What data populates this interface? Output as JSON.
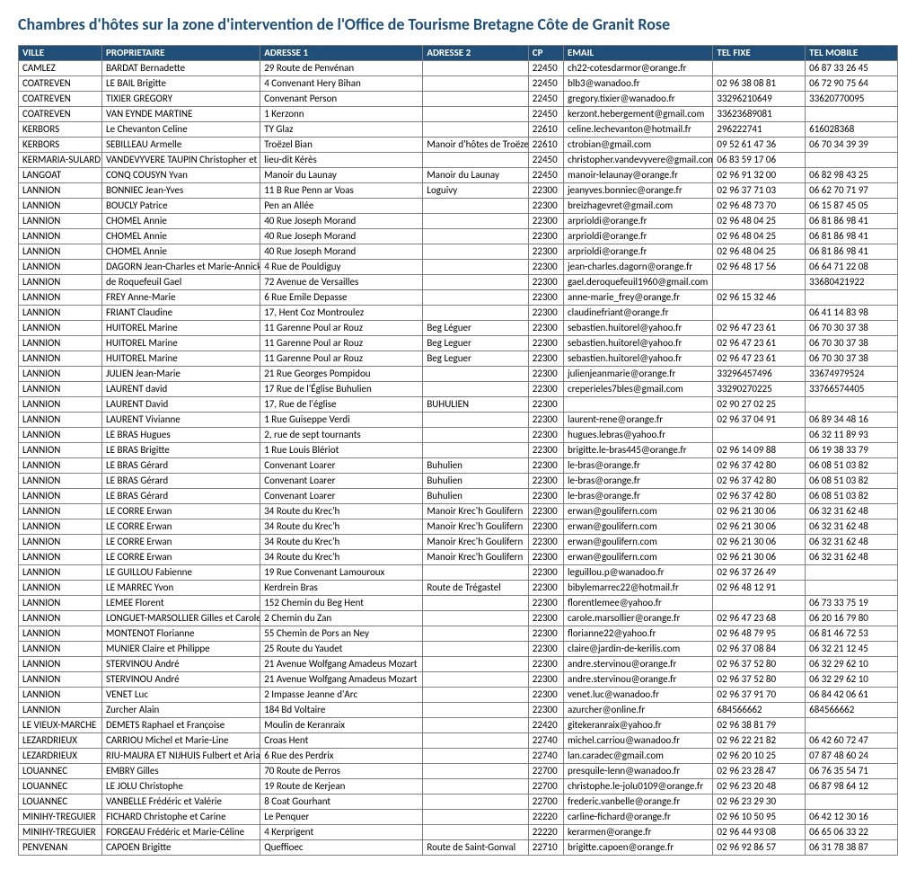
{
  "title": "Chambres d'hôtes sur la zone d'intervention de l'Office de Tourisme Bretagne Côte de Granit Rose",
  "columns": [
    "VILLE",
    "PROPRIETAIRE",
    "ADRESSE 1",
    "ADRESSE 2",
    "CP",
    "EMAIL",
    "TEL FIXE",
    "TEL MOBILE"
  ],
  "rows": [
    [
      "CAMLEZ",
      "BARDAT Bernadette",
      "29 Route de Penvénan",
      "",
      "22450",
      "ch22-cotesdarmor@orange.fr",
      "",
      "06 87 33 26 45"
    ],
    [
      "COATREVEN",
      "LE BAIL Brigitte",
      "4 Convenant Hery Bihan",
      "",
      "22450",
      "blb3@wanadoo.fr",
      "02 96 38 08 81",
      "06 72 90 75 64"
    ],
    [
      "COATREVEN",
      "TIXIER GREGORY",
      "Convenant Person",
      "",
      "22450",
      "gregory.tixier@wanadoo.fr",
      "33296210649",
      "33620770095"
    ],
    [
      "COATREVEN",
      "VAN EYNDE MARTINE",
      "1 Kerzonn",
      "",
      "22450",
      "kerzont.hebergement@gmail.com",
      "33623689081",
      ""
    ],
    [
      "KERBORS",
      "Le Chevanton Celine",
      "TY Glaz",
      "",
      "22610",
      "celine.lechevanton@hotmail.fr",
      "296222741",
      "616028368"
    ],
    [
      "KERBORS",
      "SEBILLEAU Armelle",
      "Troëzel Bian",
      "Manoir d'hôtes de Troëzel Bian",
      "22610",
      "ctrobian@gmail.com",
      "09 52 61 47 36",
      "06 70 34 39 39"
    ],
    [
      "KERMARIA-SULARD",
      "VANDEVYVERE TAUPIN  Christopher et Christelle",
      "lieu-dit Kérès",
      "",
      "22450",
      "christopher.vandevyvere@gmail.com",
      "06 83 59 17 06",
      ""
    ],
    [
      "LANGOAT",
      "CONQ COUSYN Yvan",
      "Manoir du Launay",
      "Manoir du Launay",
      "22450",
      "manoir-lelaunay@orange.fr",
      "02 96 91 32 00",
      "06 82 98 43 25"
    ],
    [
      "LANNION",
      "BONNIEC Jean-Yves",
      "11 B Rue Penn ar Voas",
      "Loguivy",
      "22300",
      "jeanyves.bonniec@orange.fr",
      "02 96 37 71 03",
      "06 62 70 71 97"
    ],
    [
      "LANNION",
      "BOUCLY Patrice",
      "Pen an Allée",
      "",
      "22300",
      "breizhagevret@gmail.com",
      "02 96 48 73 70",
      "06 15 87 45 05"
    ],
    [
      "LANNION",
      "CHOMEL Annie",
      "40 Rue Joseph Morand",
      "",
      "22300",
      "arprioldi@orange.fr",
      "02 96 48 04 25",
      "06 81 86 98 41"
    ],
    [
      "LANNION",
      "CHOMEL Annie",
      "40 Rue Joseph Morand",
      "",
      "22300",
      "arprioldi@orange.fr",
      "02 96 48 04 25",
      "06 81 86 98 41"
    ],
    [
      "LANNION",
      "CHOMEL Annie",
      "40 Rue Joseph Morand",
      "",
      "22300",
      "arprioldi@orange.fr",
      "02 96 48 04 25",
      "06 81 86 98 41"
    ],
    [
      "LANNION",
      "DAGORN Jean-Charles et Marie-Annick",
      "4 Rue de Pouldiguy",
      "",
      "22300",
      "jean-charles.dagorn@orange.fr",
      "02 96 48 17 56",
      "06 64 71 22 08"
    ],
    [
      "LANNION",
      "de Roquefeuil Gael",
      "72 Avenue de Versailles",
      "",
      "22300",
      "gael.deroquefeuil1960@gmail.com",
      "",
      "33680421922"
    ],
    [
      "LANNION",
      "FREY Anne-Marie",
      "6 Rue Emile Depasse",
      "",
      "22300",
      "anne-marie_frey@orange.fr",
      "02 96 15 32 46",
      ""
    ],
    [
      "LANNION",
      "FRIANT Claudine",
      "17, Hent Coz Montroulez",
      "",
      "22300",
      "claudinefriant@orange.fr",
      "",
      "06 41 14 83 98"
    ],
    [
      "LANNION",
      "HUITOREL Marine",
      "11 Garenne Poul ar Rouz",
      "Beg Léguer",
      "22300",
      "sebastien.huitorel@yahoo.fr",
      "02 96 47 23 61",
      "06 70 30 37 38"
    ],
    [
      "LANNION",
      "HUITOREL Marine",
      "11 Garenne Poul ar Rouz",
      "Beg Leguer",
      "22300",
      "sebastien.huitorel@yahoo.fr",
      "02 96 47 23 61",
      "06 70 30 37 38"
    ],
    [
      "LANNION",
      "HUITOREL Marine",
      "11 Garenne Poul ar Rouz",
      "Beg Leguer",
      "22300",
      "sebastien.huitorel@yahoo.fr",
      "02 96 47 23 61",
      "06 70 30 37 38"
    ],
    [
      "LANNION",
      "JULIEN Jean-Marie",
      "21 Rue Georges Pompidou",
      "",
      "22300",
      "julienjeanmarie@orange.fr",
      "33296457496",
      "33674979524"
    ],
    [
      "LANNION",
      "LAURENT david",
      "17 Rue de l'Église Buhulien",
      "",
      "22300",
      "creperieles7bles@gmail.com",
      "33290270225",
      "33766574405"
    ],
    [
      "LANNION",
      "LAURENT David",
      "17, Rue de l'église",
      "BUHULIEN",
      "22300",
      "",
      "02 90 27 02 25",
      ""
    ],
    [
      "LANNION",
      "LAURENT Vivianne",
      "1 Rue Guiseppe Verdi",
      "",
      "22300",
      "laurent-rene@orange.fr",
      "02 96 37 04 91",
      "06 89 34 48 16"
    ],
    [
      "LANNION",
      "LE BRAS  Hugues",
      "2, rue de sept tournants",
      "",
      "22300",
      "hugues.lebras@yahoo.fr",
      "",
      "06 32 11 89 93"
    ],
    [
      "LANNION",
      "LE BRAS Brigitte",
      "1 Rue Louis Blériot",
      "",
      "22300",
      "brigitte.le-bras445@orange.fr",
      "02 96 14 09 88",
      "06 19 38 33 79"
    ],
    [
      "LANNION",
      "LE BRAS Gérard",
      "Convenant Loarer",
      "Buhulien",
      "22300",
      "le-bras@orange.fr",
      "02 96 37 42 80",
      "06 08 51 03 82"
    ],
    [
      "LANNION",
      "LE BRAS Gérard",
      "Convenant Loarer",
      "Buhulien",
      "22300",
      "le-bras@orange.fr",
      "02 96 37 42 80",
      "06 08 51 03 82"
    ],
    [
      "LANNION",
      "LE BRAS Gérard",
      "Convenant Loarer",
      "Buhulien",
      "22300",
      "le-bras@orange.fr",
      "02 96 37 42 80",
      "06 08 51 03 82"
    ],
    [
      "LANNION",
      "LE CORRE Erwan",
      "34 Route du Krec'h",
      "Manoir Krec'h Goulifern",
      "22300",
      "erwan@goulifern.com",
      "02 96 21 30 06",
      "06 32 31 62 48"
    ],
    [
      "LANNION",
      "LE CORRE Erwan",
      "34 Route du Krec'h",
      "Manoir Krec'h Goulifern",
      "22300",
      "erwan@goulifern.com",
      "02 96 21 30 06",
      "06 32 31 62 48"
    ],
    [
      "LANNION",
      "LE CORRE Erwan",
      "34 Route du Krec'h",
      "Manoir Krec'h Goulifern",
      "22300",
      "erwan@goulifern.com",
      "02 96 21 30 06",
      "06 32 31 62 48"
    ],
    [
      "LANNION",
      "LE CORRE Erwan",
      "34 Route du Krec'h",
      "Manoir Krec'h Goulifern",
      "22300",
      "erwan@goulifern.com",
      "02 96 21 30 06",
      "06 32 31 62 48"
    ],
    [
      "LANNION",
      "LE GUILLOU Fabienne",
      "19 Rue Convenant Lamouroux",
      "",
      "22300",
      "leguillou.p@wanadoo.fr",
      "02 96 37 26 49",
      ""
    ],
    [
      "LANNION",
      "LE MARREC Yvon",
      "Kerdrein Bras",
      "Route de Trégastel",
      "22300",
      "bibylemarrec22@hotmail.fr",
      "02 96 48 12 91",
      ""
    ],
    [
      "LANNION",
      "LEMEE Florent",
      "152 Chemin du Beg Hent",
      "",
      "22300",
      "florentlemee@yahoo.fr",
      "",
      "06 73 33 75 19"
    ],
    [
      "LANNION",
      "LONGUET-MARSOLLIER Gilles et Carole",
      "2 Chemin du Zan",
      "",
      "22300",
      "carole.marsollier@orange.fr",
      "02 96 47 23 68",
      "06 20 16 79 80"
    ],
    [
      "LANNION",
      "MONTENOT Florianne",
      "55 Chemin de Pors an Ney",
      "",
      "22300",
      "florianne22@yahoo.fr",
      "02 96 48 79 95",
      "06 81 46 72 53"
    ],
    [
      "LANNION",
      "MUNIER Claire et Philippe",
      "25 Route du Yaudet",
      "",
      "22300",
      "claire@jardin-de-kerilis.com",
      "02 96 37 08 84",
      "06 32 21 12 45"
    ],
    [
      "LANNION",
      "STERVINOU André",
      "21 Avenue Wolfgang Amadeus Mozart",
      "",
      "22300",
      "andre.stervinou@orange.fr",
      "02 96 37 52 80",
      "06 32 29 62 10"
    ],
    [
      "LANNION",
      "STERVINOU André",
      "21 Avenue Wolfgang Amadeus Mozart",
      "",
      "22300",
      "andre.stervinou@orange.fr",
      "02 96 37 52 80",
      "06 32 29 62 10"
    ],
    [
      "LANNION",
      "VENET Luc",
      "2 Impasse Jeanne d'Arc",
      "",
      "22300",
      "venet.luc@wanadoo.fr",
      "02 96 37 91 70",
      "06 84 42 06 61"
    ],
    [
      "LANNION",
      "Zurcher Alain",
      "184 Bd Voltaire",
      "",
      "22300",
      "azurcher@online.fr",
      "684566662",
      "684566662"
    ],
    [
      "LE VIEUX-MARCHE",
      "DEMETS Raphael et Françoise",
      "Moulin de Keranraix",
      "",
      "22420",
      "gitekeranraix@yahoo.fr",
      "02 96 38 81 79",
      ""
    ],
    [
      "LEZARDRIEUX",
      "CARRIOU Michel et Marie-Line",
      "Croas Hent",
      "",
      "22740",
      "michel.carriou@wanadoo.fr",
      "02 96 22 21 82",
      "06 42 60 72 47"
    ],
    [
      "LEZARDRIEUX",
      "RIU-MAURA ET NIJHUIS Fulbert et Ariadne",
      "6 Rue des Perdrix",
      "",
      "22740",
      "lan.caradec@gmail.com",
      "02 96 20 10 25",
      "07 87 48 60 24"
    ],
    [
      "LOUANNEC",
      "EMBRY Gilles",
      "70 Route de Perros",
      "",
      "22700",
      "presquile-lenn@wanadoo.fr",
      "02 96 23 28 47",
      "06 76 35 54 71"
    ],
    [
      "LOUANNEC",
      "LE JOLU Christophe",
      "19 Route de Kerjean",
      "",
      "22700",
      "christophe.le-jolu0109@orange.fr",
      "02 96 23 20 48",
      "06 87 98 64 12"
    ],
    [
      "LOUANNEC",
      "VANBELLE Frédéric et Valérie",
      "8 Coat Gourhant",
      "",
      "22700",
      "frederic.vanbelle@orange.fr",
      "02 96 23 29 30",
      ""
    ],
    [
      "MINIHY-TREGUIER",
      "FICHARD Christophe et Carine",
      "Le Penquer",
      "",
      "22220",
      "carline-fichard@orange.fr",
      "02 96 10 50 95",
      "06 42 12 30 16"
    ],
    [
      "MINIHY-TREGUIER",
      "FORGEAU Frédéric et Marie-Céline",
      "4 Kerprigent",
      "",
      "22220",
      "kerarmen@orange.fr",
      "02 96 44 93 08",
      "06 65 06 33 22"
    ],
    [
      "PENVENAN",
      "CAPOEN Brigitte",
      "Queffioec",
      "Route de Saint-Gonval",
      "22710",
      "brigitte.capoen@orange.fr",
      "02 96 92 86 57",
      "06 31 78 38 87"
    ]
  ]
}
